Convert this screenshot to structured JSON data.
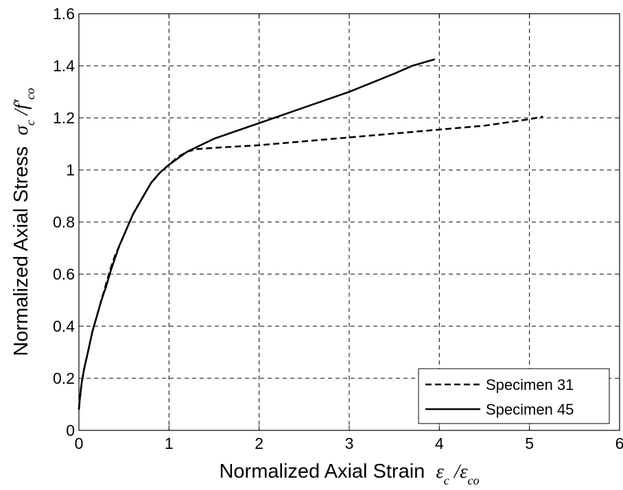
{
  "chart_data": {
    "type": "line",
    "title": "",
    "xlabel": {
      "text": "Normalized Axial Strain",
      "math": "εc /εco"
    },
    "ylabel": {
      "text": "Normalized Axial Stress",
      "math": "σc /f′co"
    },
    "xlim": [
      0,
      6
    ],
    "ylim": [
      0,
      1.6
    ],
    "xticks": [
      0,
      1,
      2,
      3,
      4,
      5,
      6
    ],
    "xtick_labels": [
      "0",
      "1",
      "2",
      "3",
      "4",
      "5",
      "6"
    ],
    "yticks": [
      0,
      0.2,
      0.4,
      0.6,
      0.8,
      1.0,
      1.2,
      1.4,
      1.6
    ],
    "ytick_labels": [
      "0",
      "0.2",
      "0.4",
      "0.6",
      "0.8",
      "1",
      "1.2",
      "1.4",
      "1.6"
    ],
    "grid": true,
    "legend_position": "bottom-right",
    "series": [
      {
        "name": "Specimen 31",
        "line_style": "dashed",
        "color": "#000000",
        "x": [
          0,
          0.01,
          0.03,
          0.06,
          0.1,
          0.15,
          0.2,
          0.25,
          0.3,
          0.35,
          0.4,
          0.45,
          0.5,
          0.6,
          0.7,
          0.8,
          0.9,
          1.0,
          1.1,
          1.2,
          1.3,
          1.5,
          2.0,
          2.5,
          3.0,
          3.5,
          4.0,
          4.5,
          5.0,
          5.15
        ],
        "y": [
          0.08,
          0.12,
          0.18,
          0.24,
          0.3,
          0.38,
          0.44,
          0.5,
          0.56,
          0.62,
          0.67,
          0.71,
          0.75,
          0.83,
          0.89,
          0.95,
          0.99,
          1.02,
          1.05,
          1.07,
          1.08,
          1.085,
          1.095,
          1.11,
          1.125,
          1.14,
          1.155,
          1.17,
          1.195,
          1.205
        ]
      },
      {
        "name": "Specimen 45",
        "line_style": "solid",
        "color": "#000000",
        "x": [
          0,
          0.01,
          0.03,
          0.06,
          0.1,
          0.15,
          0.2,
          0.25,
          0.3,
          0.35,
          0.4,
          0.45,
          0.5,
          0.6,
          0.7,
          0.8,
          0.9,
          1.0,
          1.2,
          1.5,
          2.0,
          2.5,
          3.0,
          3.5,
          3.7,
          3.95
        ],
        "y": [
          0.08,
          0.12,
          0.18,
          0.24,
          0.3,
          0.38,
          0.44,
          0.5,
          0.55,
          0.61,
          0.66,
          0.71,
          0.75,
          0.83,
          0.89,
          0.95,
          0.99,
          1.02,
          1.07,
          1.12,
          1.18,
          1.24,
          1.3,
          1.37,
          1.4,
          1.425
        ]
      }
    ]
  }
}
